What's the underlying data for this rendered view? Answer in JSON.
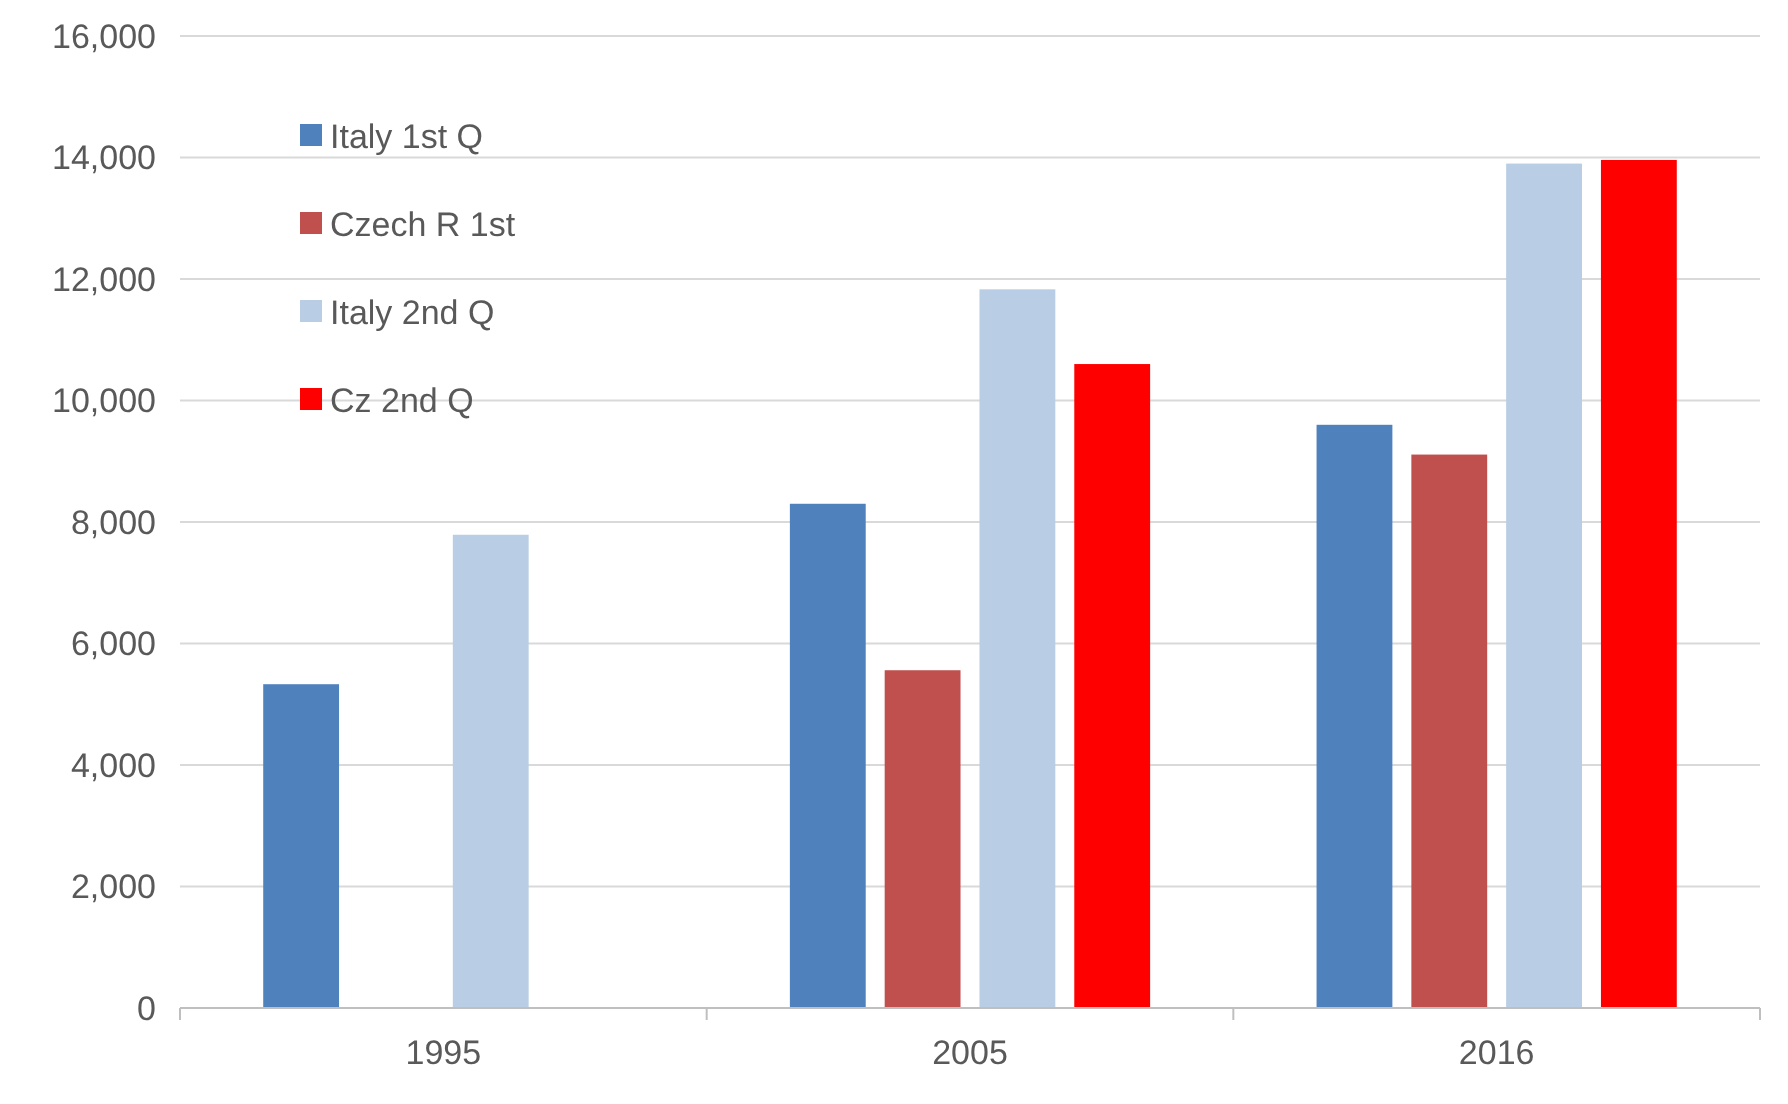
{
  "chart_data": {
    "type": "bar",
    "categories": [
      "1995",
      "2005",
      "2016"
    ],
    "series": [
      {
        "name": "Italy 1st Q",
        "color": "#4f81bd",
        "values": [
          5330,
          8300,
          9600
        ]
      },
      {
        "name": "Czech R 1st",
        "color": "#c0504d",
        "values": [
          null,
          5560,
          9110
        ]
      },
      {
        "name": "Italy 2nd Q",
        "color": "#b9cde5",
        "values": [
          7790,
          11830,
          13900
        ]
      },
      {
        "name": "Cz 2nd Q",
        "color": "#ff0000",
        "values": [
          null,
          10600,
          13960
        ]
      }
    ],
    "ylim": [
      0,
      16000
    ],
    "yticks": [
      {
        "value": 0,
        "label": "0"
      },
      {
        "value": 2000,
        "label": "2,000"
      },
      {
        "value": 4000,
        "label": "4,000"
      },
      {
        "value": 6000,
        "label": "6,000"
      },
      {
        "value": 8000,
        "label": "8,000"
      },
      {
        "value": 10000,
        "label": "10,000"
      },
      {
        "value": 12000,
        "label": "12,000"
      },
      {
        "value": 14000,
        "label": "14,000"
      },
      {
        "value": 16000,
        "label": "16,000"
      }
    ],
    "grid": "y",
    "legend": "top left"
  }
}
